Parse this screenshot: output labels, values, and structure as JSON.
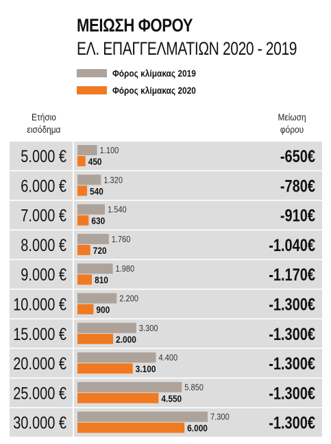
{
  "title": "ΜΕΙΩΣΗ ΦΟΡΟΥ",
  "subtitle": "ΕΛ. ΕΠΑΓΓΕΛΜΑΤΙΩΝ 2020 - 2019",
  "legend": [
    {
      "label": "Φόρος κλίμακας 2019",
      "color": "#ada39b"
    },
    {
      "label": "Φόρος κλίμακας 2020",
      "color": "#f07a22"
    }
  ],
  "col_left": [
    "Ετήσιο",
    "εισόδημα"
  ],
  "col_right": [
    "Μείωση",
    "φόρου"
  ],
  "colors": {
    "row_bg": "#dddddd",
    "divider": "#ffffff",
    "tax2019": "#ada39b",
    "tax2020": "#f07a22",
    "text": "#111111"
  },
  "chart_data": {
    "type": "bar",
    "orientation": "horizontal",
    "categories": [
      "5.000 €",
      "6.000 €",
      "7.000 €",
      "8.000 €",
      "9.000 €",
      "10.000 €",
      "15.000 €",
      "20.000 €",
      "25.000 €",
      "30.000 €"
    ],
    "series": [
      {
        "name": "Φόρος κλίμακας 2019",
        "values": [
          1100,
          1320,
          1540,
          1760,
          1980,
          2200,
          3300,
          4400,
          5850,
          7300
        ],
        "labels": [
          "1.100",
          "1.320",
          "1.540",
          "1.760",
          "1.980",
          "2.200",
          "3.300",
          "4.400",
          "5.850",
          "7.300"
        ]
      },
      {
        "name": "Φόρος κλίμακας 2020",
        "values": [
          450,
          540,
          630,
          720,
          810,
          900,
          2000,
          3100,
          4550,
          6000
        ],
        "labels": [
          "450",
          "540",
          "630",
          "720",
          "810",
          "900",
          "2.000",
          "3.100",
          "4.550",
          "6.000"
        ]
      }
    ],
    "reduction": [
      "-650€",
      "-780€",
      "-910€",
      "-1.040€",
      "-1.170€",
      "-1.300€",
      "-1.300€",
      "-1.300€",
      "-1.300€",
      "-1.300€"
    ],
    "xlim": [
      0,
      8000
    ]
  }
}
